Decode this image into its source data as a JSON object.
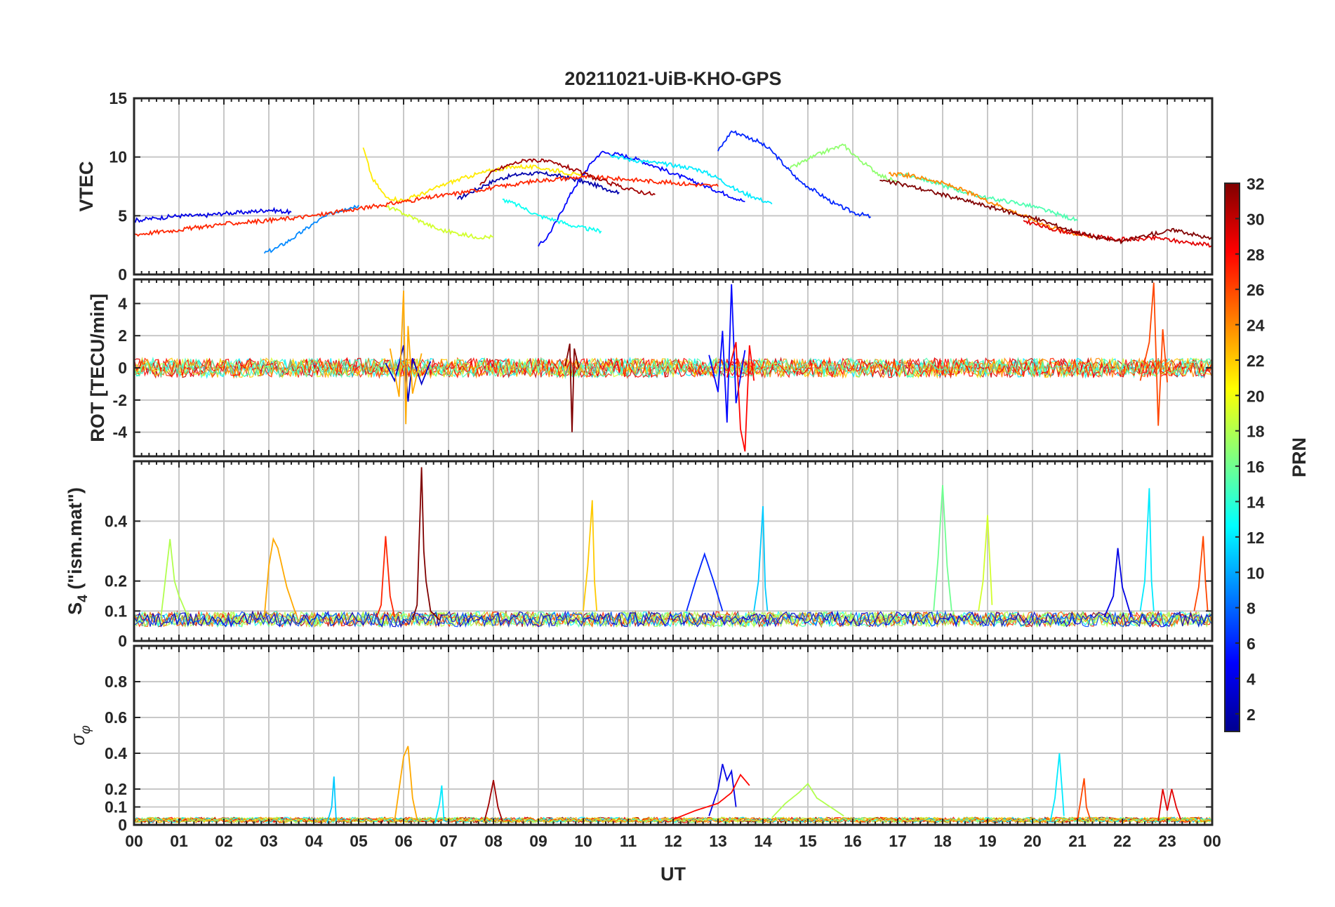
{
  "chart_data": {
    "type": "line",
    "title": "20211021-UiB-KHO-GPS",
    "xlabel": "UT",
    "x_tick_labels": [
      "00",
      "01",
      "02",
      "03",
      "04",
      "05",
      "06",
      "07",
      "08",
      "09",
      "10",
      "11",
      "12",
      "13",
      "14",
      "15",
      "16",
      "17",
      "18",
      "19",
      "20",
      "21",
      "22",
      "23",
      "00"
    ],
    "xlim": [
      0,
      24
    ],
    "grid": true,
    "colormap": "jet",
    "colorbar": {
      "label": "PRN",
      "range": [
        1,
        32
      ],
      "tick_labels": [
        "2",
        "4",
        "6",
        "8",
        "10",
        "12",
        "14",
        "16",
        "18",
        "20",
        "22",
        "24",
        "26",
        "28",
        "30",
        "32"
      ],
      "colors": [
        "#00008f",
        "#0000ff",
        "#0080ff",
        "#00ffff",
        "#80ff80",
        "#ffff00",
        "#ff8000",
        "#ff0000",
        "#800000"
      ]
    },
    "panels": [
      {
        "id": "vtec",
        "ylabel": "VTEC",
        "ylim": [
          0,
          15
        ],
        "y_tick_labels": [
          "0",
          "5",
          "10",
          "15"
        ],
        "series": [
          {
            "prn": 2,
            "x": [
              7.2,
              7.5,
              7.8,
              8.1,
              8.4,
              8.7,
              9.0,
              9.3,
              9.6,
              9.9,
              10.2,
              10.5,
              10.8
            ],
            "y": [
              6.4,
              7.0,
              7.6,
              8.1,
              8.4,
              8.6,
              8.6,
              8.5,
              8.3,
              8.0,
              7.7,
              7.3,
              7.0
            ]
          },
          {
            "prn": 4,
            "x": [
              0.0,
              0.5,
              1.0,
              1.5,
              2.0,
              2.5,
              3.0,
              3.5
            ],
            "y": [
              4.6,
              4.8,
              5.0,
              5.0,
              5.2,
              5.3,
              5.5,
              5.3
            ]
          },
          {
            "prn": 5,
            "x": [
              9.0,
              9.2,
              9.4,
              9.6,
              9.8,
              10.0,
              10.2,
              10.4,
              10.8,
              11.2,
              11.6,
              12.0,
              12.4,
              12.8,
              13.2,
              13.6
            ],
            "y": [
              2.4,
              3.2,
              4.5,
              6.0,
              7.4,
              8.5,
              9.6,
              10.4,
              10.2,
              9.8,
              9.2,
              8.6,
              8.0,
              7.4,
              6.8,
              6.2
            ]
          },
          {
            "prn": 6,
            "x": [
              13.0,
              13.3,
              13.6,
              13.9,
              14.2,
              14.5,
              14.8,
              15.2,
              15.6,
              16.0,
              16.4
            ],
            "y": [
              10.5,
              12.2,
              11.8,
              11.3,
              10.5,
              9.2,
              8.0,
              7.0,
              6.0,
              5.3,
              4.9
            ]
          },
          {
            "prn": 9,
            "x": [
              2.9,
              3.2,
              3.5,
              3.8,
              4.1,
              4.4,
              4.7,
              5.0
            ],
            "y": [
              1.8,
              2.3,
              3.0,
              3.8,
              4.6,
              5.2,
              5.6,
              5.9
            ]
          },
          {
            "prn": 12,
            "x": [
              10.6,
              11.0,
              11.4,
              11.8,
              12.2,
              12.6,
              13.0,
              13.4,
              13.8,
              14.2
            ],
            "y": [
              10.2,
              9.8,
              9.6,
              9.4,
              9.2,
              8.9,
              8.2,
              7.2,
              6.6,
              6.0
            ]
          },
          {
            "prn": 13,
            "x": [
              8.2,
              8.6,
              9.0,
              9.4,
              9.8,
              10.2,
              10.4
            ],
            "y": [
              6.4,
              5.8,
              5.0,
              4.6,
              4.1,
              3.8,
              3.7
            ]
          },
          {
            "prn": 15,
            "x": [
              17.0,
              17.5,
              18.0,
              18.5,
              19.0,
              19.5,
              20.0,
              20.5,
              21.0
            ],
            "y": [
              8.6,
              8.2,
              7.6,
              7.0,
              6.5,
              6.2,
              5.8,
              5.2,
              4.6
            ]
          },
          {
            "prn": 17,
            "x": [
              14.6,
              15.0,
              15.4,
              15.8,
              16.2,
              16.6,
              17.0
            ],
            "y": [
              9.0,
              9.8,
              10.5,
              11.0,
              9.6,
              8.5,
              7.8
            ]
          },
          {
            "prn": 19,
            "x": [
              5.6,
              6.0,
              6.4,
              6.8,
              7.2,
              7.6,
              8.0
            ],
            "y": [
              5.8,
              5.2,
              4.5,
              3.8,
              3.5,
              3.2,
              3.2
            ]
          },
          {
            "prn": 21,
            "x": [
              5.1,
              5.3,
              5.6,
              6.0,
              6.5,
              7.0,
              7.5,
              8.0,
              8.5,
              9.0,
              9.5,
              10.0
            ],
            "y": [
              10.8,
              8.2,
              6.6,
              6.3,
              7.0,
              7.8,
              8.4,
              8.9,
              9.2,
              9.1,
              8.8,
              8.3
            ]
          },
          {
            "prn": 24,
            "x": [
              16.8,
              17.3,
              17.8,
              18.3,
              18.8,
              19.3,
              19.8,
              20.3,
              20.8,
              21.3
            ],
            "y": [
              8.6,
              8.4,
              8.0,
              7.4,
              6.6,
              5.8,
              5.0,
              4.2,
              3.6,
              3.2
            ]
          },
          {
            "prn": 27,
            "x": [
              0.0,
              1.0,
              2.0,
              3.0,
              4.0,
              5.0,
              6.0,
              7.0,
              8.0,
              9.0,
              10.0,
              11.0,
              12.0,
              13.0
            ],
            "y": [
              3.4,
              3.8,
              4.3,
              4.6,
              5.0,
              5.6,
              6.2,
              6.8,
              7.4,
              8.0,
              8.3,
              8.1,
              7.8,
              7.5
            ]
          },
          {
            "prn": 29,
            "x": [
              19.8,
              20.3,
              20.8,
              21.3,
              21.8,
              22.3,
              22.8,
              23.3,
              24.0
            ],
            "y": [
              4.6,
              4.0,
              3.6,
              3.3,
              3.0,
              3.0,
              3.1,
              2.8,
              2.5
            ]
          },
          {
            "prn": 31,
            "x": [
              7.7,
              8.0,
              8.4,
              8.8,
              9.2,
              9.6,
              10.0,
              10.4,
              10.8,
              11.2,
              11.6
            ],
            "y": [
              7.6,
              8.8,
              9.4,
              9.8,
              9.6,
              9.2,
              8.6,
              8.0,
              7.5,
              7.1,
              6.8
            ]
          },
          {
            "prn": 32,
            "x": [
              16.6,
              17.2,
              17.8,
              18.4,
              19.0,
              19.6,
              20.2,
              20.8,
              21.4,
              22.0,
              22.6,
              23.2,
              24.0
            ],
            "y": [
              8.0,
              7.6,
              7.0,
              6.4,
              5.8,
              5.2,
              4.6,
              3.8,
              3.2,
              2.8,
              3.4,
              3.8,
              3.0
            ]
          }
        ]
      },
      {
        "id": "rot",
        "ylabel": "ROT [TECU/min]",
        "ylim": [
          -5.5,
          5.5
        ],
        "y_tick_labels": [
          "-4",
          "-2",
          "0",
          "2",
          "4"
        ],
        "series": [
          {
            "prn": 3,
            "x": [
              5.6,
              5.8,
              6.0,
              6.1,
              6.2,
              6.4,
              6.6
            ],
            "y": [
              0.3,
              -0.8,
              1.4,
              -2.1,
              0.6,
              -1.0,
              0.4
            ]
          },
          {
            "prn": 5,
            "x": [
              12.8,
              13.0,
              13.1,
              13.2,
              13.3,
              13.4,
              13.6
            ],
            "y": [
              0.8,
              -1.5,
              2.3,
              -3.4,
              5.2,
              -2.2,
              1.1
            ]
          },
          {
            "prn": 23,
            "x": [
              5.7,
              5.9,
              6.0,
              6.05,
              6.1,
              6.2,
              6.4
            ],
            "y": [
              1.2,
              -1.8,
              4.8,
              -3.5,
              2.6,
              -1.6,
              0.9
            ]
          },
          {
            "prn": 28,
            "x": [
              13.2,
              13.4,
              13.5,
              13.6,
              13.7,
              13.8
            ],
            "y": [
              -0.6,
              1.6,
              -3.8,
              -5.2,
              1.4,
              -0.8
            ]
          },
          {
            "prn": 26,
            "x": [
              22.4,
              22.6,
              22.7,
              22.8,
              22.9,
              23.0
            ],
            "y": [
              -0.8,
              1.6,
              5.3,
              -3.6,
              2.4,
              -0.9
            ]
          },
          {
            "prn": 32,
            "x": [
              9.6,
              9.7,
              9.75,
              9.8,
              9.9
            ],
            "y": [
              0.1,
              1.5,
              -4.0,
              1.2,
              0.0
            ]
          }
        ]
      },
      {
        "id": "s4",
        "ylabel": "S4 (\"ism.mat\")",
        "ylabel_main": "S",
        "ylabel_sub": "4",
        "ylabel_rest": " (\"ism.mat\")",
        "ylim": [
          0,
          0.6
        ],
        "y_tick_labels": [
          "0",
          "0.1",
          "0.2",
          "0.4"
        ],
        "series": [
          {
            "prn": 32,
            "x": [
              6.2,
              6.3,
              6.4,
              6.45,
              6.5,
              6.6,
              6.8
            ],
            "y": [
              0.07,
              0.12,
              0.58,
              0.3,
              0.2,
              0.1,
              0.07
            ]
          },
          {
            "prn": 27,
            "x": [
              5.4,
              5.5,
              5.6,
              5.7,
              5.8
            ],
            "y": [
              0.08,
              0.12,
              0.35,
              0.15,
              0.08
            ]
          },
          {
            "prn": 23,
            "x": [
              2.9,
              3.0,
              3.1,
              3.2,
              3.4,
              3.6
            ],
            "y": [
              0.08,
              0.25,
              0.34,
              0.31,
              0.18,
              0.09
            ]
          },
          {
            "prn": 18,
            "x": [
              0.6,
              0.8,
              0.9,
              1.0,
              1.2
            ],
            "y": [
              0.08,
              0.34,
              0.2,
              0.15,
              0.08
            ]
          },
          {
            "prn": 22,
            "x": [
              10.0,
              10.1,
              10.2,
              10.25,
              10.3
            ],
            "y": [
              0.1,
              0.25,
              0.47,
              0.2,
              0.1
            ]
          },
          {
            "prn": 11,
            "x": [
              13.8,
              13.9,
              14.0,
              14.05,
              14.1
            ],
            "y": [
              0.1,
              0.2,
              0.45,
              0.18,
              0.1
            ]
          },
          {
            "prn": 16,
            "x": [
              17.8,
              17.9,
              18.0,
              18.1,
              18.2
            ],
            "y": [
              0.1,
              0.28,
              0.52,
              0.25,
              0.1
            ]
          },
          {
            "prn": 19,
            "x": [
              18.8,
              18.9,
              19.0,
              19.1
            ],
            "y": [
              0.1,
              0.2,
              0.42,
              0.12
            ]
          },
          {
            "prn": 12,
            "x": [
              22.4,
              22.5,
              22.6,
              22.65,
              22.7
            ],
            "y": [
              0.1,
              0.2,
              0.51,
              0.2,
              0.1
            ]
          },
          {
            "prn": 26,
            "x": [
              23.6,
              23.7,
              23.8,
              23.85,
              23.9
            ],
            "y": [
              0.1,
              0.18,
              0.35,
              0.2,
              0.1
            ]
          },
          {
            "prn": 6,
            "x": [
              12.3,
              12.5,
              12.7,
              12.9,
              13.1
            ],
            "y": [
              0.1,
              0.2,
              0.29,
              0.2,
              0.1
            ]
          },
          {
            "prn": 4,
            "x": [
              21.6,
              21.8,
              21.9,
              22.0,
              22.2
            ],
            "y": [
              0.08,
              0.15,
              0.31,
              0.18,
              0.08
            ]
          }
        ]
      },
      {
        "id": "sigma_phi",
        "ylabel": "σφ",
        "ylabel_main": "σ",
        "ylabel_sub": "φ",
        "ylim": [
          0,
          1.0
        ],
        "y_tick_labels": [
          "0",
          "0.1",
          "0.2",
          "0.4",
          "0.6",
          "0.8"
        ],
        "series": [
          {
            "prn": 23,
            "x": [
              5.8,
              5.9,
              6.0,
              6.1,
              6.2,
              6.3
            ],
            "y": [
              0.02,
              0.2,
              0.38,
              0.44,
              0.15,
              0.03
            ]
          },
          {
            "prn": 31,
            "x": [
              7.8,
              7.9,
              8.0,
              8.1,
              8.2
            ],
            "y": [
              0.02,
              0.12,
              0.25,
              0.1,
              0.02
            ]
          },
          {
            "prn": 4,
            "x": [
              12.8,
              13.0,
              13.1,
              13.2,
              13.3,
              13.4
            ],
            "y": [
              0.05,
              0.2,
              0.34,
              0.25,
              0.3,
              0.1
            ]
          },
          {
            "prn": 28,
            "x": [
              12.0,
              12.5,
              13.0,
              13.3,
              13.5,
              13.7
            ],
            "y": [
              0.03,
              0.08,
              0.12,
              0.18,
              0.28,
              0.22
            ]
          },
          {
            "prn": 18,
            "x": [
              14.2,
              14.5,
              14.8,
              15.0,
              15.2,
              15.5,
              15.8
            ],
            "y": [
              0.04,
              0.12,
              0.18,
              0.23,
              0.15,
              0.1,
              0.05
            ]
          },
          {
            "prn": 12,
            "x": [
              20.4,
              20.5,
              20.6,
              20.7
            ],
            "y": [
              0.02,
              0.15,
              0.4,
              0.05
            ]
          },
          {
            "prn": 11,
            "x": [
              4.3,
              4.4,
              4.45,
              4.5
            ],
            "y": [
              0.01,
              0.1,
              0.27,
              0.02
            ]
          },
          {
            "prn": 12,
            "x": [
              6.7,
              6.8,
              6.85,
              6.9
            ],
            "y": [
              0.01,
              0.12,
              0.22,
              0.02
            ]
          },
          {
            "prn": 26,
            "x": [
              21.0,
              21.1,
              21.15,
              21.2,
              21.3
            ],
            "y": [
              0.02,
              0.18,
              0.26,
              0.1,
              0.02
            ]
          },
          {
            "prn": 29,
            "x": [
              22.8,
              22.9,
              23.0,
              23.1,
              23.2,
              23.3
            ],
            "y": [
              0.02,
              0.2,
              0.08,
              0.2,
              0.1,
              0.03
            ]
          }
        ]
      }
    ]
  }
}
